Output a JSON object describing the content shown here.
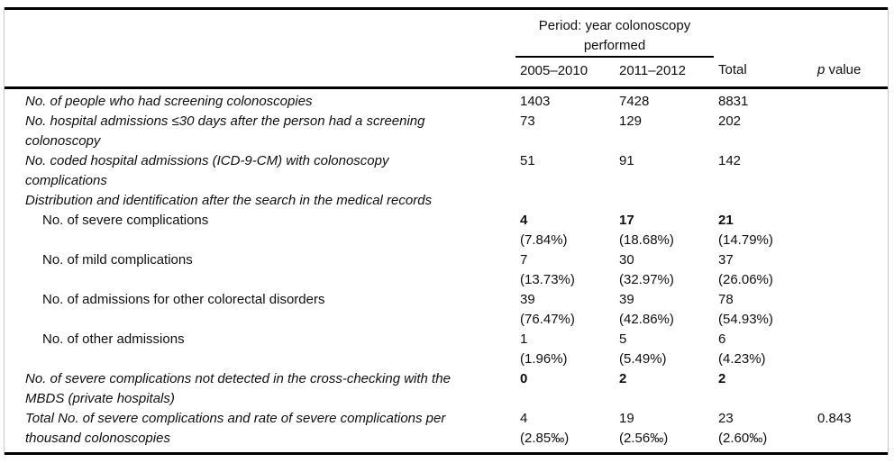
{
  "colors": {
    "background": "#ffffff",
    "rule_black": "#000000",
    "frame_gray": "#c9c9c9",
    "text": "#0f0f0f"
  },
  "table": {
    "header": {
      "period_l1": "Period: year colonoscopy",
      "period_l2": "performed",
      "col_2005_2010": "2005–2010",
      "col_2011_2012": "2011–2012",
      "col_total": "Total",
      "p_italic": "p",
      "p_rest": " value"
    },
    "rows": [
      {
        "l1": "No. of people who had screening colonoscopies",
        "n1": "1403",
        "n2": "7428",
        "n3": "8831"
      },
      {
        "l1": "No. hospital admissions ≤30 days after the person had a screening",
        "l2": "colonoscopy",
        "n1": "73",
        "n2": "129",
        "n3": "202"
      },
      {
        "l1": "No. coded hospital admissions (ICD-9-CM) with colonoscopy",
        "l2": "complications",
        "n1": "51",
        "n2": "91",
        "n3": "142"
      },
      {
        "l1": "Distribution and identification after the search in the medical records"
      },
      {
        "l1": "No. of severe complications",
        "n1": "4",
        "p1": "(7.84%)",
        "n2": "17",
        "p2": "(18.68%)",
        "n3": "21",
        "p3": "(14.79%)"
      },
      {
        "l1": "No. of mild complications",
        "n1": "7",
        "p1": "(13.73%)",
        "n2": "30",
        "p2": "(32.97%)",
        "n3": "37",
        "p3": "(26.06%)"
      },
      {
        "l1": "No. of admissions for other colorectal disorders",
        "n1": "39",
        "p1": "(76.47%)",
        "n2": "39",
        "p2": "(42.86%)",
        "n3": "78",
        "p3": "(54.93%)"
      },
      {
        "l1": "No. of other admissions",
        "n1": "1",
        "p1": "(1.96%)",
        "n2": "5",
        "p2": "(5.49%)",
        "n3": "6",
        "p3": "(4.23%)"
      },
      {
        "l1": "No. of severe complications not detected in the cross-checking with the",
        "l2": "MBDS (private hospitals)",
        "n1": "0",
        "n2": "2",
        "n3": "2"
      },
      {
        "l1": "Total No. of severe complications and rate of severe complications per",
        "l2": "thousand colonoscopies",
        "n1": "4",
        "p1": "(2.85‰)",
        "n2": "19",
        "p2": "(2.56‰)",
        "n3": "23",
        "p3": "(2.60‰)",
        "pval": "0.843"
      }
    ]
  }
}
